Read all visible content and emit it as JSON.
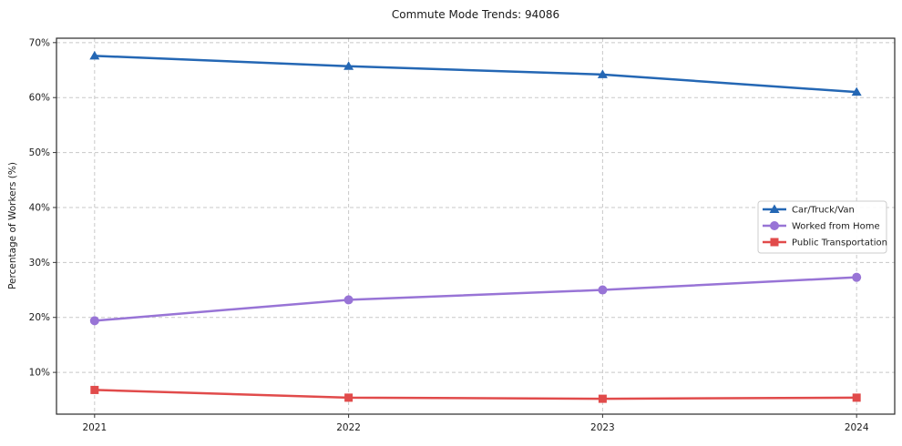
{
  "title": "Commute Mode Trends: 94086",
  "chart_data": {
    "type": "line",
    "title": "Commute Mode Trends: 94086",
    "xlabel": "",
    "ylabel": "Percentage of Workers (%)",
    "x": [
      2021,
      2022,
      2023,
      2024
    ],
    "series": [
      {
        "name": "Car/Truck/Van",
        "values": [
          67.6,
          65.7,
          64.2,
          61.0
        ],
        "color": "#2467b4",
        "marker": "triangle"
      },
      {
        "name": "Worked from Home",
        "values": [
          19.4,
          23.2,
          25.0,
          27.3
        ],
        "color": "#9874d6",
        "marker": "circle"
      },
      {
        "name": "Public Transportation",
        "values": [
          6.8,
          5.4,
          5.2,
          5.4
        ],
        "color": "#e14b4b",
        "marker": "square"
      }
    ],
    "xticks": [
      2021,
      2022,
      2023,
      2024
    ],
    "xtick_labels": [
      "2021",
      "2022",
      "2023",
      "2024"
    ],
    "yticks": [
      10,
      20,
      30,
      40,
      50,
      60,
      70
    ],
    "ytick_labels": [
      "10%",
      "20%",
      "30%",
      "40%",
      "50%",
      "60%",
      "70%"
    ],
    "xlim": [
      2020.85,
      2024.15
    ],
    "ylim": [
      2.4,
      70.8
    ],
    "grid": true,
    "legend_position": "center right"
  },
  "colors": {
    "background": "#ffffff",
    "grid": "#c8c8c8",
    "frame": "#2a2a2a",
    "text": "#1a1a1a",
    "tick": "#333333",
    "legend_border": "#cccccc",
    "legend_background": "#ffffff"
  }
}
